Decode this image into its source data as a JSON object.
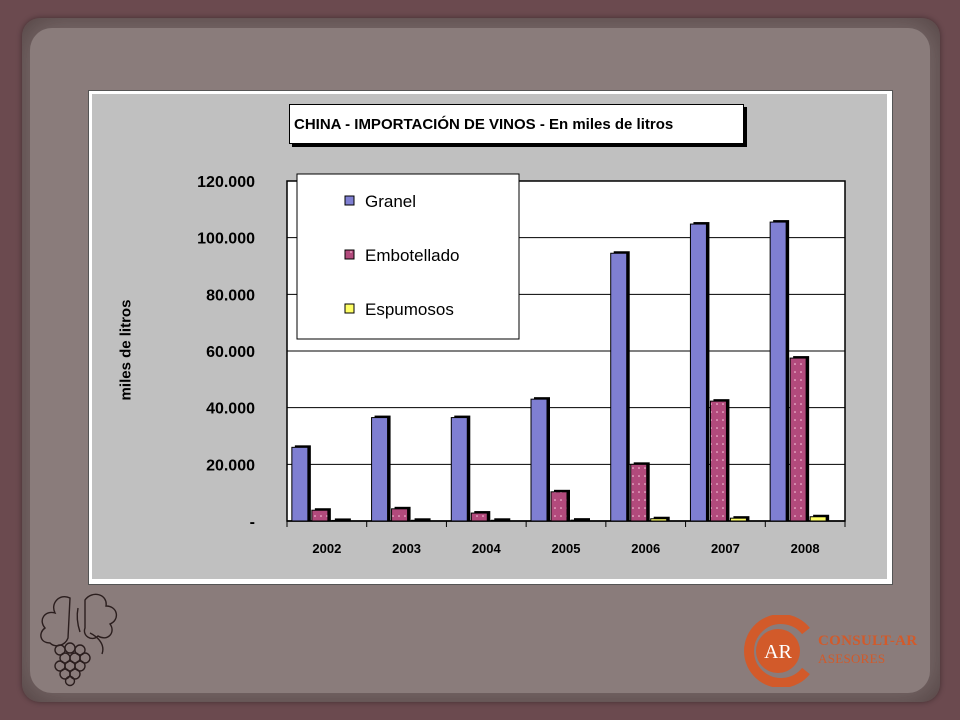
{
  "chart_data": {
    "type": "bar",
    "title": "CHINA - IMPORTACIÓN DE VINOS  - En miles de litros",
    "ylabel": "miles de litros",
    "xlabel": "",
    "categories": [
      "2002",
      "2003",
      "2004",
      "2005",
      "2006",
      "2007",
      "2008"
    ],
    "ylim": [
      0,
      120000
    ],
    "ytick_labels": [
      "-",
      "20.000",
      "40.000",
      "60.000",
      "80.000",
      "100.000",
      "120.000"
    ],
    "ytick_values": [
      0,
      20000,
      40000,
      60000,
      80000,
      100000,
      120000
    ],
    "grid": true,
    "legend_position": "top-left",
    "series": [
      {
        "name": "Granel",
        "color": "#7f7fd2",
        "values": [
          26000,
          36500,
          36500,
          43000,
          94500,
          104800,
          105500
        ]
      },
      {
        "name": "Embotellado",
        "color": "#b24a7c",
        "values": [
          3800,
          4300,
          2800,
          10300,
          20000,
          42300,
          57500
        ]
      },
      {
        "name": "Espumosos",
        "color": "#ffff66",
        "values": [
          200,
          250,
          250,
          300,
          800,
          1000,
          1500
        ]
      }
    ]
  },
  "logos": {
    "consult_line1": "CONSULT-AR",
    "consult_line2": "ASESORES",
    "consult_mark": "AR",
    "consult_color": "#d25a2a"
  }
}
